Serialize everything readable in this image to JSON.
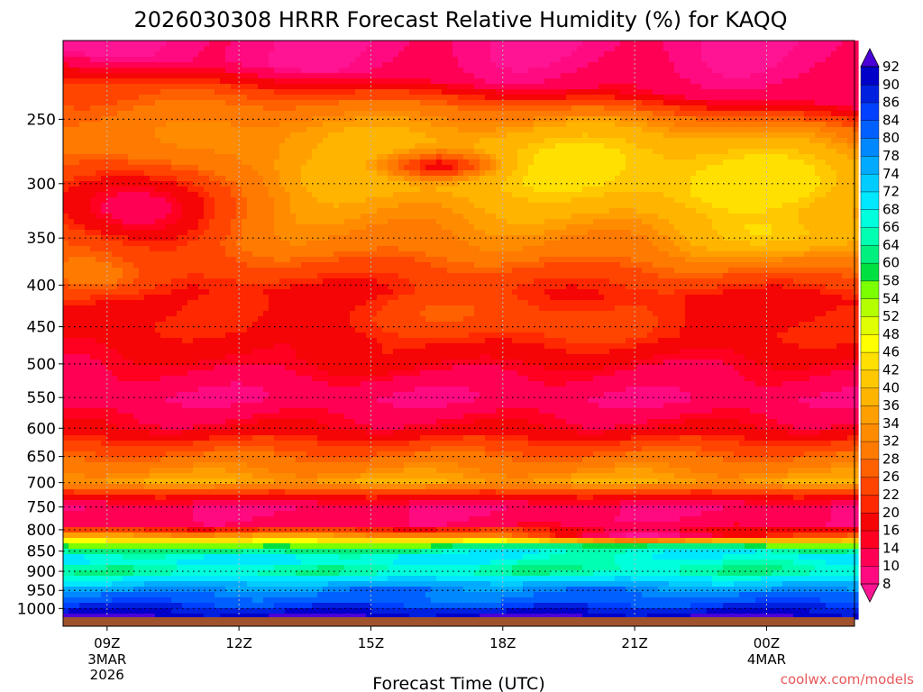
{
  "chart_data": {
    "type": "heatmap",
    "title": "2026030308 HRRR Forecast Relative Humidity (%) for KAQQ",
    "xlabel": "Forecast Time (UTC)",
    "ylabel": "",
    "credit": "coolwx.com/models",
    "x_ticks": [
      {
        "label": "09Z",
        "sub": [
          "3MAR",
          "2026"
        ],
        "hour": 9
      },
      {
        "label": "12Z",
        "sub": [],
        "hour": 12
      },
      {
        "label": "15Z",
        "sub": [],
        "hour": 15
      },
      {
        "label": "18Z",
        "sub": [],
        "hour": 18
      },
      {
        "label": "21Z",
        "sub": [],
        "hour": 21
      },
      {
        "label": "00Z",
        "sub": [
          "4MAR"
        ],
        "hour": 24
      }
    ],
    "x_range_hours": [
      8,
      26
    ],
    "y_ticks": [
      250,
      300,
      350,
      400,
      450,
      500,
      550,
      600,
      650,
      700,
      750,
      800,
      850,
      900,
      950,
      1000
    ],
    "y_range_hpa": [
      200,
      1025
    ],
    "y_scale": "log",
    "grid": true,
    "colorbar": {
      "levels": [
        8,
        10,
        14,
        16,
        20,
        22,
        26,
        28,
        32,
        34,
        36,
        40,
        42,
        46,
        48,
        52,
        54,
        58,
        60,
        64,
        66,
        68,
        72,
        74,
        78,
        80,
        84,
        86,
        90,
        92
      ],
      "colors": [
        "#ff1493",
        "#ff0a80",
        "#ff0055",
        "#ff0020",
        "#f50505",
        "#ff2800",
        "#ff4500",
        "#ff6000",
        "#ff7a00",
        "#ff8c00",
        "#ffa000",
        "#ffb400",
        "#ffc800",
        "#ffe000",
        "#ffff00",
        "#e0ff00",
        "#b4ff00",
        "#7cff00",
        "#00e040",
        "#00f080",
        "#00ffb0",
        "#00ffdd",
        "#00e8ff",
        "#00ccff",
        "#00aaff",
        "#0088ff",
        "#0060ff",
        "#0040ff",
        "#0020e0",
        "#0000c8",
        "#4b00d8"
      ]
    },
    "ground_color": "#a0522d",
    "rh_profile": [
      {
        "p": 205,
        "rh": 8
      },
      {
        "p": 225,
        "rh": 24
      },
      {
        "p": 250,
        "rh": 30
      },
      {
        "p": 275,
        "rh": 34
      },
      {
        "p": 300,
        "rh": 32
      },
      {
        "p": 325,
        "rh": 32
      },
      {
        "p": 350,
        "rh": 30
      },
      {
        "p": 375,
        "rh": 24
      },
      {
        "p": 400,
        "rh": 18
      },
      {
        "p": 450,
        "rh": 20
      },
      {
        "p": 500,
        "rh": 14
      },
      {
        "p": 550,
        "rh": 10
      },
      {
        "p": 600,
        "rh": 16
      },
      {
        "p": 650,
        "rh": 28
      },
      {
        "p": 700,
        "rh": 36
      },
      {
        "p": 725,
        "rh": 20
      },
      {
        "p": 750,
        "rh": 10
      },
      {
        "p": 790,
        "rh": 12
      },
      {
        "p": 815,
        "rh": 36
      },
      {
        "p": 840,
        "rh": 58
      },
      {
        "p": 870,
        "rh": 70
      },
      {
        "p": 900,
        "rh": 64
      },
      {
        "p": 930,
        "rh": 72
      },
      {
        "p": 960,
        "rh": 80
      },
      {
        "p": 990,
        "rh": 86
      },
      {
        "p": 1015,
        "rh": 92
      }
    ],
    "features": [
      {
        "t": 19.5,
        "p": 285,
        "rh": 42,
        "dt": 6,
        "dp": 40
      },
      {
        "t": 23.5,
        "p": 300,
        "rh": 44,
        "dt": 3,
        "dp": 30
      },
      {
        "t": 24.5,
        "p": 345,
        "rh": 42,
        "dt": 2,
        "dp": 25
      },
      {
        "t": 13.5,
        "p": 270,
        "rh": 36,
        "dt": 2.5,
        "dp": 25
      },
      {
        "t": 16.5,
        "p": 285,
        "rh": 20,
        "dt": 1.2,
        "dp": 10
      },
      {
        "t": 9.5,
        "p": 320,
        "rh": 10,
        "dt": 2,
        "dp": 40
      },
      {
        "t": 9,
        "p": 390,
        "rh": 30,
        "dt": 1.5,
        "dp": 25
      },
      {
        "t": 17.5,
        "p": 440,
        "rh": 26,
        "dt": 3,
        "dp": 40
      },
      {
        "t": 14.5,
        "p": 480,
        "rh": 18,
        "dt": 3,
        "dp": 30
      },
      {
        "t": 21.5,
        "p": 810,
        "rh": 8,
        "dt": 4,
        "dp": 20
      },
      {
        "t": 17,
        "p": 960,
        "rh": 80,
        "dt": 6,
        "dp": 30
      }
    ]
  }
}
